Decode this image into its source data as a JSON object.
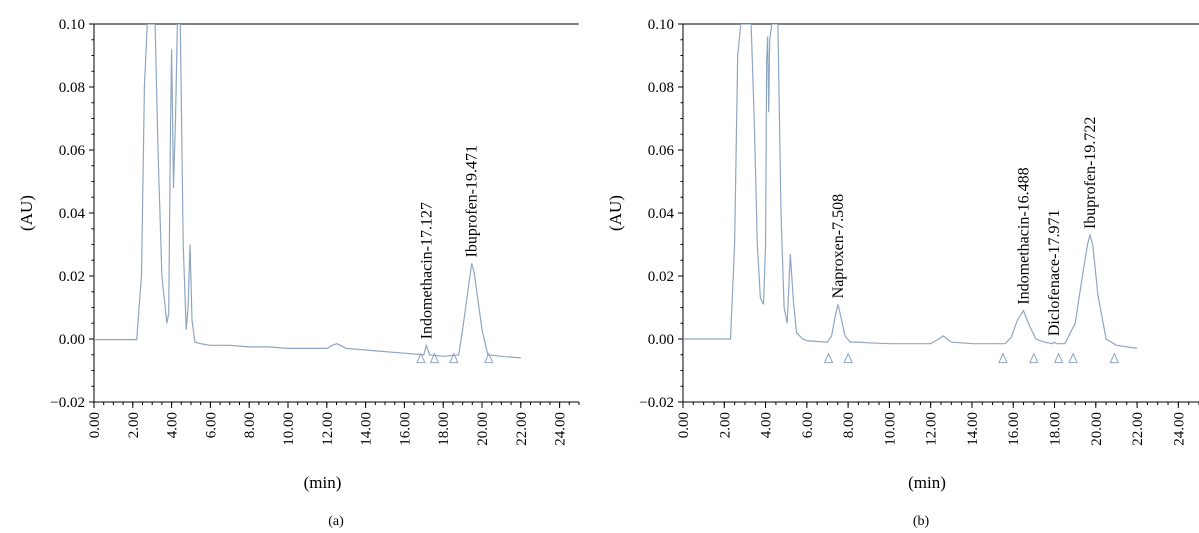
{
  "colors": {
    "trace": "#8fa6c2",
    "axis": "#000000",
    "text": "#000000"
  },
  "chart_data": [
    {
      "type": "line",
      "panel_label": "(a)",
      "xlabel": "(min)",
      "ylabel": "(AU)",
      "xlim": [
        0,
        25
      ],
      "ylim": [
        -0.02,
        0.1
      ],
      "x_ticks": [
        "0.00",
        "2.00",
        "4.00",
        "6.00",
        "8.00",
        "10.00",
        "12.00",
        "14.00",
        "16.00",
        "18.00",
        "20.00",
        "22.00",
        "24.00"
      ],
      "y_ticks": [
        "−0.02",
        "0.00",
        "0.02",
        "0.04",
        "0.06",
        "0.08",
        "0.10"
      ],
      "x_tick_values": [
        0,
        2,
        4,
        6,
        8,
        10,
        12,
        14,
        16,
        18,
        20,
        22,
        24
      ],
      "y_tick_values": [
        -0.02,
        0,
        0.02,
        0.04,
        0.06,
        0.08,
        0.1
      ],
      "peaks": [
        {
          "x": 17.127,
          "y": -0.002,
          "label": "Indomethacin-17.127"
        },
        {
          "x": 19.471,
          "y": 0.024,
          "label": "Ibuprofen-19.471"
        }
      ],
      "integration_marks": [
        16.85,
        17.55,
        18.55,
        20.35
      ],
      "series": [
        {
          "x": [
            0,
            2.2,
            2.45,
            2.6,
            2.75,
            3.0,
            3.15,
            3.3,
            3.5,
            3.75,
            3.85,
            3.95,
            4.0,
            4.05,
            4.1,
            4.2,
            4.3,
            4.35,
            4.45,
            4.6,
            4.75,
            4.85,
            4.95,
            5.05,
            5.2,
            5.5,
            6.0,
            7.0,
            8.0,
            9.0,
            10.0,
            11.0,
            12.0,
            12.3,
            12.5,
            12.7,
            13.0,
            14.0,
            15.0,
            16.0,
            17.0,
            17.13,
            17.3,
            18.0,
            18.8,
            19.0,
            19.2,
            19.4,
            19.47,
            19.6,
            19.8,
            20.0,
            20.3,
            21.0,
            22.0
          ],
          "y": [
            -0.0002,
            -0.0002,
            0.02,
            0.08,
            0.1,
            0.1,
            0.1,
            0.06,
            0.02,
            0.005,
            0.008,
            0.07,
            0.092,
            0.07,
            0.048,
            0.07,
            0.1,
            0.1,
            0.1,
            0.03,
            0.003,
            0.01,
            0.03,
            0.006,
            -0.001,
            -0.0015,
            -0.002,
            -0.002,
            -0.0025,
            -0.0025,
            -0.003,
            -0.003,
            -0.003,
            -0.002,
            -0.0015,
            -0.002,
            -0.003,
            -0.0035,
            -0.004,
            -0.0045,
            -0.005,
            -0.002,
            -0.005,
            -0.0055,
            -0.005,
            0.003,
            0.012,
            0.021,
            0.024,
            0.021,
            0.012,
            0.003,
            -0.005,
            -0.0055,
            -0.006
          ]
        }
      ]
    },
    {
      "type": "line",
      "panel_label": "(b)",
      "xlabel": "(min)",
      "ylabel": "(AU)",
      "xlim": [
        0,
        25
      ],
      "ylim": [
        -0.02,
        0.1
      ],
      "x_ticks": [
        "0.00",
        "2.00",
        "4.00",
        "6.00",
        "8.00",
        "10.00",
        "12.00",
        "14.00",
        "16.00",
        "18.00",
        "20.00",
        "22.00",
        "24.00"
      ],
      "y_ticks": [
        "−0.02",
        "0.00",
        "0.02",
        "0.04",
        "0.06",
        "0.08",
        "0.10"
      ],
      "x_tick_values": [
        0,
        2,
        4,
        6,
        8,
        10,
        12,
        14,
        16,
        18,
        20,
        22,
        24
      ],
      "y_tick_values": [
        -0.02,
        0,
        0.02,
        0.04,
        0.06,
        0.08,
        0.1
      ],
      "peaks": [
        {
          "x": 7.508,
          "y": 0.011,
          "label": "Naproxen-7.508"
        },
        {
          "x": 16.488,
          "y": 0.009,
          "label": "Indomethacin-16.488"
        },
        {
          "x": 17.971,
          "y": -0.001,
          "label": "Diclofenace-17.971"
        },
        {
          "x": 19.722,
          "y": 0.033,
          "label": "Ibuprofen-19.722"
        }
      ],
      "integration_marks": [
        7.05,
        8.0,
        15.5,
        17.0,
        18.2,
        18.9,
        20.9
      ],
      "series": [
        {
          "x": [
            0,
            2.3,
            2.5,
            2.65,
            2.8,
            3.0,
            3.2,
            3.3,
            3.45,
            3.6,
            3.75,
            3.9,
            4.0,
            4.05,
            4.1,
            4.15,
            4.2,
            4.3,
            4.4,
            4.5,
            4.6,
            4.75,
            4.9,
            5.05,
            5.2,
            5.35,
            5.5,
            5.8,
            6.0,
            6.5,
            7.0,
            7.2,
            7.4,
            7.51,
            7.65,
            7.85,
            8.1,
            8.5,
            9.0,
            10.0,
            11.0,
            12.0,
            12.4,
            12.6,
            12.8,
            13.0,
            14.0,
            15.0,
            15.6,
            15.9,
            16.2,
            16.49,
            16.8,
            17.1,
            17.5,
            17.9,
            17.97,
            18.1,
            18.5,
            19.0,
            19.3,
            19.6,
            19.72,
            19.85,
            20.1,
            20.5,
            21.0,
            22.0
          ],
          "y": [
            0,
            0,
            0.03,
            0.09,
            0.1,
            0.1,
            0.1,
            0.1,
            0.07,
            0.03,
            0.013,
            0.011,
            0.03,
            0.088,
            0.096,
            0.072,
            0.095,
            0.1,
            0.1,
            0.1,
            0.1,
            0.04,
            0.01,
            0.005,
            0.027,
            0.012,
            0.002,
            0,
            -0.0005,
            -0.0008,
            -0.001,
            0.001,
            0.008,
            0.011,
            0.007,
            0.001,
            -0.001,
            -0.001,
            -0.0012,
            -0.0015,
            -0.0015,
            -0.0015,
            0,
            0.001,
            0,
            -0.001,
            -0.0015,
            -0.0015,
            -0.0015,
            0.0005,
            0.006,
            0.009,
            0.004,
            0,
            -0.001,
            -0.0015,
            -0.001,
            -0.0015,
            -0.0015,
            0.005,
            0.018,
            0.03,
            0.033,
            0.03,
            0.014,
            0,
            -0.002,
            -0.003
          ]
        }
      ]
    }
  ]
}
